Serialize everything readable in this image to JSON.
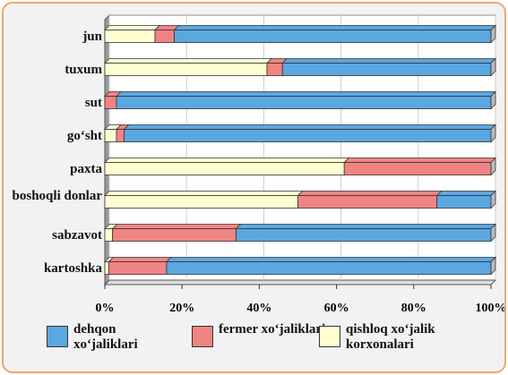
{
  "chart_data": {
    "type": "stacked_bar_horizontal",
    "categories": [
      "jun",
      "tuxum",
      "sut",
      "go‘sht",
      "paxta",
      "boshoqli donlar",
      "sabzavot",
      "kartoshka"
    ],
    "series": [
      {
        "name": "dehqon xo‘jaliklari",
        "color": "#5ba7e0",
        "values": [
          82,
          54,
          97,
          95,
          0,
          14,
          66,
          84
        ]
      },
      {
        "name": "fermer xo‘jaliklari",
        "color": "#f08482",
        "values": [
          5,
          4,
          3,
          2,
          38,
          36,
          32,
          15
        ]
      },
      {
        "name": "qishloq xo‘jalik korxonalari",
        "color": "#ffffd2",
        "values": [
          13,
          42,
          0,
          3,
          62,
          50,
          2,
          1
        ]
      }
    ],
    "xlim": [
      0,
      100
    ],
    "xticks": [
      {
        "value": 0,
        "label": "0%"
      },
      {
        "value": 20,
        "label": "20%"
      },
      {
        "value": 40,
        "label": "40%"
      },
      {
        "value": 60,
        "label": "60%"
      },
      {
        "value": 80,
        "label": "80%"
      },
      {
        "value": 100,
        "label": "100%"
      }
    ],
    "grid": true
  }
}
